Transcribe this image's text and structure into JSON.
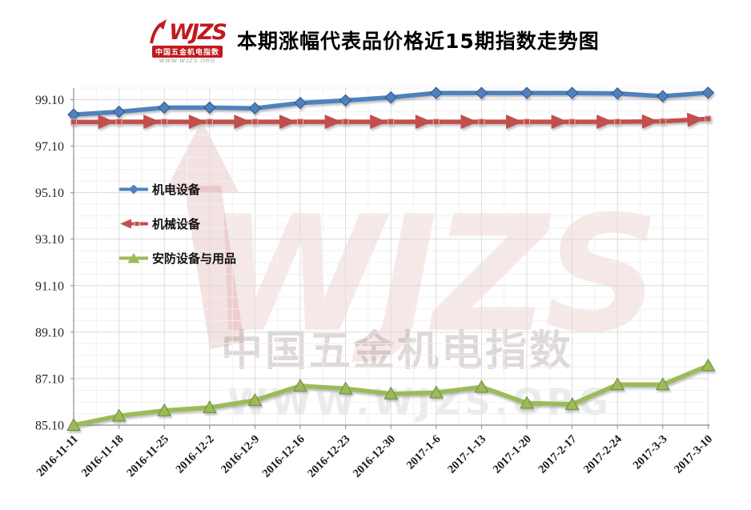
{
  "header": {
    "brand": "WJZS",
    "brand_subtitle": "中国五金机电指数",
    "brand_url": "WWW.WJZS.ORG",
    "title": "本期涨幅代表品价格近15期指数走势图"
  },
  "watermark": {
    "brand": "WJZS",
    "line1": "中国五金机电指数",
    "line2": "WWW.WJZS.ORG",
    "accent_color": "#C0504D"
  },
  "chart_data": {
    "type": "line",
    "title": "本期涨幅代表品价格近15期指数走势图",
    "x_labels": [
      "2016-11-11",
      "2016-11-18",
      "2016-11-25",
      "2016-12-2",
      "2016-12-9",
      "2016-12-16",
      "2016-12-23",
      "2016-12-30",
      "2017-1-6",
      "2017-1-13",
      "2017-1-20",
      "2017-2-17",
      "2017-2-24",
      "2017-3-3",
      "2017-3-10"
    ],
    "y_tick_labels": [
      "85.10",
      "87.10",
      "89.10",
      "91.10",
      "93.10",
      "95.10",
      "97.10",
      "99.10"
    ],
    "ylim": [
      85.1,
      99.6
    ],
    "y_major_step": 2.0,
    "y_minor_step": 0.5,
    "grid": true,
    "legend_position": "inside-left",
    "series": [
      {
        "name": "机电设备",
        "color": "#4F81BD",
        "edge_color": "#2E5787",
        "marker": "diamond",
        "values": [
          98.46,
          98.58,
          98.76,
          98.76,
          98.73,
          98.96,
          99.07,
          99.2,
          99.39,
          99.39,
          99.39,
          99.39,
          99.37,
          99.25,
          99.4
        ]
      },
      {
        "name": "机械设备",
        "color": "#C0504D",
        "edge_color": "#8E3B39",
        "marker": "arrow-right",
        "values": [
          98.14,
          98.15,
          98.15,
          98.15,
          98.15,
          98.15,
          98.15,
          98.15,
          98.15,
          98.15,
          98.15,
          98.15,
          98.15,
          98.17,
          98.28
        ]
      },
      {
        "name": "安防设备与用品",
        "color": "#9BBB59",
        "edge_color": "#6F8A3D",
        "marker": "triangle-up",
        "values": [
          85.1,
          85.5,
          85.73,
          85.86,
          86.17,
          86.79,
          86.67,
          86.45,
          86.5,
          86.74,
          86.05,
          86.0,
          86.85,
          86.85,
          87.66
        ]
      }
    ]
  }
}
